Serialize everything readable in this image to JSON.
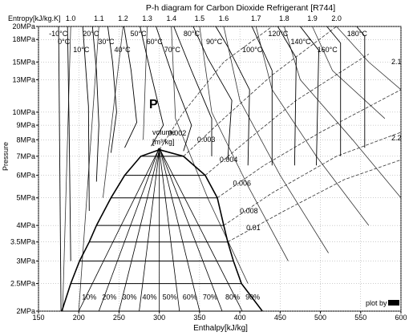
{
  "chart_data": {
    "type": "line",
    "title": "P-h diagram for Carbon Dioxide Refrigerant [R744]",
    "xlabel": "Enthalpy[kJ/kg]",
    "ylabel": "Pressure",
    "entropy_axis_label": "Entropy[kJ/kg.K]",
    "xlim": [
      150,
      600
    ],
    "ylim_MPa": [
      2,
      20
    ],
    "log_y": true,
    "grid": true,
    "x_ticks": [
      "150",
      "200",
      "250",
      "300",
      "350",
      "400",
      "450",
      "500",
      "550",
      "600"
    ],
    "y_ticks": [
      {
        "v": 2,
        "label": "2MPa"
      },
      {
        "v": 2.5,
        "label": "2.5MPa"
      },
      {
        "v": 3,
        "label": "3MPa"
      },
      {
        "v": 3.5,
        "label": "3.5MPa"
      },
      {
        "v": 4,
        "label": "4MPa"
      },
      {
        "v": 5,
        "label": "5MPa"
      },
      {
        "v": 6,
        "label": "6MPa"
      },
      {
        "v": 7,
        "label": "7MPa"
      },
      {
        "v": 8,
        "label": "8MPa"
      },
      {
        "v": 9,
        "label": "9MPa"
      },
      {
        "v": 10,
        "label": "10MPa"
      },
      {
        "v": 13,
        "label": "13MPa"
      },
      {
        "v": 15,
        "label": "15MPa"
      },
      {
        "v": 18,
        "label": "18MPa"
      },
      {
        "v": 20,
        "label": "20MPa"
      }
    ],
    "entropy_ticks": [
      {
        "s": 1.0,
        "h": 190,
        "label": "1.0"
      },
      {
        "s": 1.1,
        "h": 225,
        "label": "1.1"
      },
      {
        "s": 1.2,
        "h": 255,
        "label": "1.2"
      },
      {
        "s": 1.3,
        "h": 285,
        "label": "1.3"
      },
      {
        "s": 1.4,
        "h": 315,
        "label": "1.4"
      },
      {
        "s": 1.5,
        "h": 350,
        "label": "1.5"
      },
      {
        "s": 1.6,
        "h": 380,
        "label": "1.6"
      },
      {
        "s": 1.7,
        "h": 420,
        "label": "1.7"
      },
      {
        "s": 1.8,
        "h": 455,
        "label": "1.8"
      },
      {
        "s": 1.9,
        "h": 490,
        "label": "1.9"
      },
      {
        "s": 2.0,
        "h": 520,
        "label": "2.0"
      }
    ],
    "saturation_dome": {
      "liquid": [
        [
          179,
          2.0
        ],
        [
          190,
          2.5
        ],
        [
          201,
          3.0
        ],
        [
          213,
          3.5
        ],
        [
          222,
          4.0
        ],
        [
          240,
          5.0
        ],
        [
          257,
          6.0
        ],
        [
          277,
          7.0
        ],
        [
          300,
          7.38
        ]
      ],
      "vapor": [
        [
          300,
          7.38
        ],
        [
          330,
          7.0
        ],
        [
          357,
          6.0
        ],
        [
          372,
          5.0
        ],
        [
          380,
          4.0
        ],
        [
          385,
          3.5
        ],
        [
          392,
          3.0
        ],
        [
          402,
          2.5
        ],
        [
          428,
          2.0
        ]
      ]
    },
    "critical_point": {
      "h": 300,
      "p": 7.38
    },
    "isotherms": [
      {
        "label": "-10°C",
        "points": [
          [
            178,
            2.0
          ],
          [
            175,
            20
          ]
        ]
      },
      {
        "label": "0°C",
        "points": [
          [
            190,
            3.0
          ],
          [
            188,
            8.8
          ],
          [
            186,
            20
          ]
        ]
      },
      {
        "label": "10°C",
        "points": [
          [
            213,
            4.5
          ],
          [
            212,
            10.5
          ],
          [
            205,
            20
          ]
        ]
      },
      {
        "label": "20°C",
        "points": [
          [
            222,
            5.7
          ],
          [
            225,
            9.0
          ],
          [
            222,
            14.0
          ],
          [
            217,
            20
          ]
        ]
      },
      {
        "label": "30°C",
        "points": [
          [
            240,
            7.2
          ],
          [
            247,
            10.0
          ],
          [
            242,
            15.0
          ],
          [
            236,
            20
          ]
        ]
      },
      {
        "label": "40°C",
        "points": [
          [
            257,
            7.5
          ],
          [
            272,
            9.2
          ],
          [
            265,
            14.0
          ],
          [
            256,
            20
          ]
        ]
      },
      {
        "label": "50°C",
        "points": [
          [
            290,
            7.6
          ],
          [
            305,
            9.0
          ],
          [
            290,
            13.5
          ],
          [
            276,
            20
          ]
        ]
      },
      {
        "label": "60°C",
        "points": [
          [
            330,
            7.3
          ],
          [
            340,
            9.0
          ],
          [
            318,
            13.0
          ],
          [
            296,
            20
          ]
        ]
      },
      {
        "label": "70°C",
        "points": [
          [
            365,
            7.0
          ],
          [
            365,
            9.5
          ],
          [
            340,
            14.0
          ],
          [
            318,
            20
          ]
        ]
      },
      {
        "label": "80°C",
        "points": [
          [
            385,
            6.8
          ],
          [
            390,
            11.0
          ],
          [
            360,
            15.5
          ],
          [
            342,
            20
          ]
        ]
      },
      {
        "label": "90°C",
        "points": [
          [
            410,
            6.5
          ],
          [
            412,
            12.0
          ],
          [
            385,
            17.0
          ],
          [
            370,
            20
          ]
        ]
      },
      {
        "label": "100°C",
        "points": [
          [
            440,
            6.5
          ],
          [
            440,
            14.0
          ],
          [
            415,
            20
          ]
        ]
      },
      {
        "label": "120°C",
        "points": [
          [
            468,
            6.5
          ],
          [
            470,
            15.5
          ],
          [
            447,
            20
          ]
        ]
      },
      {
        "label": "140°C",
        "points": [
          [
            495,
            6.5
          ],
          [
            498,
            16.5
          ],
          [
            475,
            20
          ]
        ]
      },
      {
        "label": "160°C",
        "points": [
          [
            525,
            7.0
          ],
          [
            525,
            17.5
          ],
          [
            508,
            20
          ]
        ]
      },
      {
        "label": "180°C",
        "points": [
          [
            555,
            7.5
          ],
          [
            555,
            18.5
          ],
          [
            545,
            20
          ]
        ]
      }
    ],
    "isochores": [
      {
        "label": "0.002",
        "points": [
          [
            300,
            7.38
          ],
          [
            330,
            10.0
          ],
          [
            380,
            15.0
          ],
          [
            440,
            20.0
          ]
        ]
      },
      {
        "label": "0.003",
        "points": [
          [
            330,
            7.0
          ],
          [
            380,
            9.5
          ],
          [
            440,
            13.5
          ],
          [
            520,
            20.0
          ]
        ]
      },
      {
        "label": "0.004",
        "points": [
          [
            357,
            6.0
          ],
          [
            410,
            8.0
          ],
          [
            470,
            11.0
          ],
          [
            560,
            16.0
          ]
        ]
      },
      {
        "label": "0.006",
        "points": [
          [
            372,
            5.0
          ],
          [
            430,
            6.5
          ],
          [
            500,
            8.5
          ],
          [
            600,
            12.0
          ]
        ]
      },
      {
        "label": "0.008",
        "points": [
          [
            380,
            4.0
          ],
          [
            440,
            5.2
          ],
          [
            520,
            7.0
          ],
          [
            600,
            8.5
          ]
        ]
      },
      {
        "label": "0.01",
        "points": [
          [
            385,
            3.5
          ],
          [
            455,
            4.5
          ],
          [
            530,
            5.8
          ],
          [
            600,
            6.8
          ]
        ]
      }
    ],
    "quality_lines": [
      {
        "label": "10%",
        "points": [
          [
            200,
            2.0
          ],
          [
            299,
            7.38
          ]
        ]
      },
      {
        "label": "20%",
        "points": [
          [
            225,
            2.0
          ],
          [
            299,
            7.38
          ]
        ]
      },
      {
        "label": "30%",
        "points": [
          [
            250,
            2.0
          ],
          [
            300,
            7.38
          ]
        ]
      },
      {
        "label": "40%",
        "points": [
          [
            275,
            2.0
          ],
          [
            300,
            7.38
          ]
        ]
      },
      {
        "label": "50%",
        "points": [
          [
            300,
            2.0
          ],
          [
            300,
            7.38
          ]
        ]
      },
      {
        "label": "60%",
        "points": [
          [
            325,
            2.0
          ],
          [
            300,
            7.38
          ]
        ]
      },
      {
        "label": "70%",
        "points": [
          [
            350,
            2.0
          ],
          [
            301,
            7.38
          ]
        ]
      },
      {
        "label": "80%",
        "points": [
          [
            378,
            2.0
          ],
          [
            301,
            7.38
          ]
        ]
      },
      {
        "label": "90%",
        "points": [
          [
            403,
            2.0
          ],
          [
            301,
            7.38
          ]
        ]
      }
    ],
    "isentropes": [
      {
        "s": "1.0",
        "points": [
          [
            190,
            20
          ],
          [
            180,
            2.0
          ]
        ]
      },
      {
        "s": "1.1",
        "points": [
          [
            225,
            20
          ],
          [
            200,
            2.0
          ]
        ]
      },
      {
        "s": "1.2",
        "points": [
          [
            255,
            20
          ],
          [
            230,
            5.0
          ]
        ]
      },
      {
        "s": "1.3",
        "points": [
          [
            285,
            20
          ],
          [
            280,
            8.0
          ]
        ]
      },
      {
        "s": "1.4",
        "points": [
          [
            315,
            20
          ],
          [
            320,
            9.5
          ],
          [
            360,
            5.0
          ],
          [
            410,
            2.5
          ]
        ]
      },
      {
        "s": "1.5",
        "points": [
          [
            350,
            20
          ],
          [
            365,
            10.0
          ],
          [
            410,
            5.5
          ],
          [
            460,
            3.0
          ]
        ]
      },
      {
        "s": "1.6",
        "points": [
          [
            380,
            20
          ],
          [
            400,
            11.0
          ],
          [
            450,
            6.0
          ],
          [
            510,
            3.2
          ]
        ]
      },
      {
        "s": "1.7",
        "points": [
          [
            420,
            20
          ],
          [
            440,
            12.0
          ],
          [
            495,
            7.0
          ],
          [
            560,
            4.0
          ]
        ]
      },
      {
        "s": "1.8",
        "points": [
          [
            455,
            20
          ],
          [
            475,
            13.0
          ],
          [
            540,
            8.0
          ],
          [
            600,
            5.0
          ]
        ]
      },
      {
        "s": "1.9",
        "points": [
          [
            490,
            20
          ],
          [
            515,
            14.0
          ],
          [
            580,
            9.5
          ]
        ]
      },
      {
        "s": "2.0",
        "points": [
          [
            520,
            20
          ],
          [
            560,
            15.0
          ],
          [
            600,
            12.0
          ]
        ]
      }
    ],
    "annotations": {
      "region_letter": "P",
      "volume_label": "volume",
      "volume_units": "[m³/kg]",
      "plot_by": "plot by",
      "right_edge_labels": [
        "2.1",
        "2.2"
      ]
    }
  }
}
